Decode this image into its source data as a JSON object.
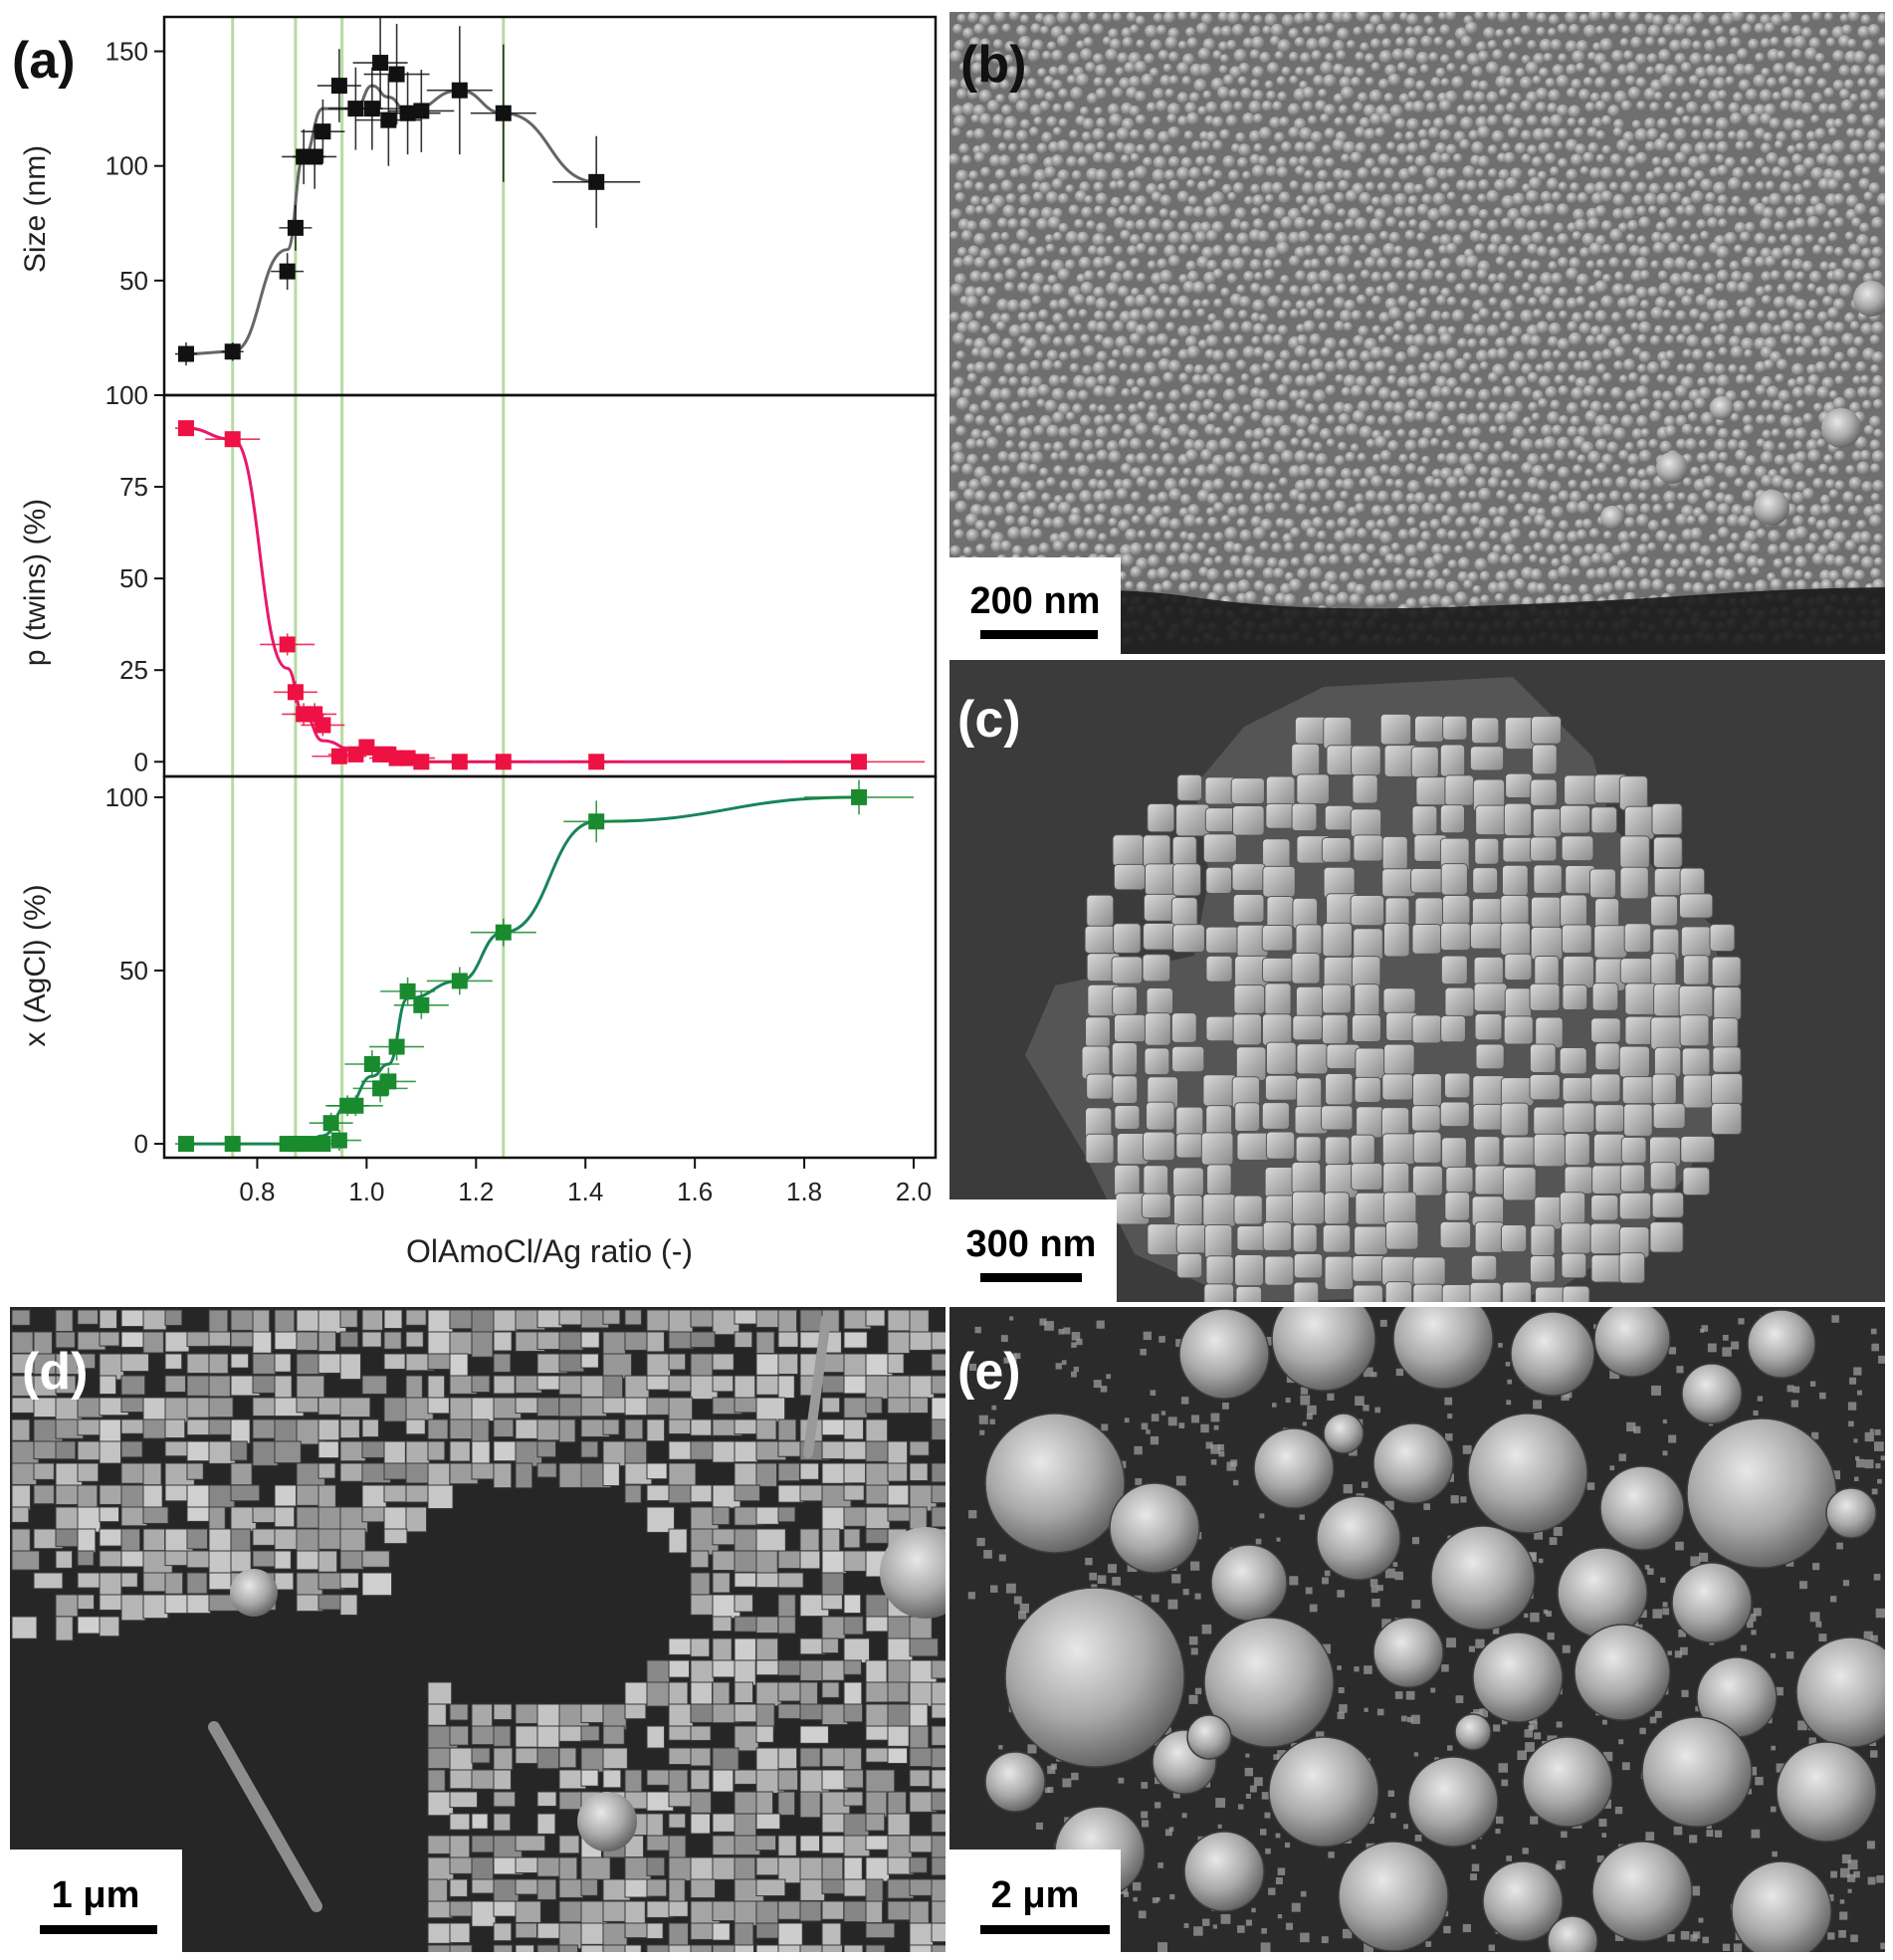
{
  "chart_data": [
    {
      "type": "scatter",
      "panel_label": "(a)",
      "ylabel": "Size (nm)",
      "xlabel": "",
      "ylim": [
        0,
        165
      ],
      "yticks": [
        {
          "value": 50,
          "label": "50"
        },
        {
          "value": 100,
          "label": "100"
        },
        {
          "value": 150,
          "label": "150"
        }
      ],
      "color": "#111111",
      "fit_color": "#666666",
      "series": [
        {
          "points": [
            {
              "x": 0.67,
              "y": 18,
              "xerr": 0.02,
              "yerr": 5
            },
            {
              "x": 0.755,
              "y": 19,
              "xerr": 0.02,
              "yerr": 4
            },
            {
              "x": 0.855,
              "y": 54,
              "xerr": 0.03,
              "yerr": 8
            },
            {
              "x": 0.87,
              "y": 73,
              "xerr": 0.03,
              "yerr": 10
            },
            {
              "x": 0.885,
              "y": 104,
              "xerr": 0.04,
              "yerr": 12
            },
            {
              "x": 0.905,
              "y": 104,
              "xerr": 0.04,
              "yerr": 14
            },
            {
              "x": 0.92,
              "y": 115,
              "xerr": 0.04,
              "yerr": 14
            },
            {
              "x": 0.95,
              "y": 135,
              "xerr": 0.04,
              "yerr": 16
            },
            {
              "x": 0.98,
              "y": 125,
              "xerr": 0.05,
              "yerr": 18
            },
            {
              "x": 1.01,
              "y": 125,
              "xerr": 0.05,
              "yerr": 18
            },
            {
              "x": 1.025,
              "y": 145,
              "xerr": 0.05,
              "yerr": 20
            },
            {
              "x": 1.04,
              "y": 120,
              "xerr": 0.06,
              "yerr": 20
            },
            {
              "x": 1.055,
              "y": 140,
              "xerr": 0.06,
              "yerr": 22
            },
            {
              "x": 1.075,
              "y": 123,
              "xerr": 0.06,
              "yerr": 18
            },
            {
              "x": 1.1,
              "y": 124,
              "xerr": 0.06,
              "yerr": 18
            },
            {
              "x": 1.17,
              "y": 133,
              "xerr": 0.06,
              "yerr": 28
            },
            {
              "x": 1.25,
              "y": 123,
              "xerr": 0.06,
              "yerr": 30
            },
            {
              "x": 1.42,
              "y": 93,
              "xerr": 0.08,
              "yerr": 20
            }
          ]
        }
      ]
    },
    {
      "type": "scatter",
      "ylabel": "p (twins) (%)",
      "xlabel": "",
      "ylim": [
        -4,
        100
      ],
      "yticks": [
        {
          "value": 0,
          "label": "0"
        },
        {
          "value": 25,
          "label": "25"
        },
        {
          "value": 50,
          "label": "50"
        },
        {
          "value": 75,
          "label": "75"
        },
        {
          "value": 100,
          "label": "100"
        }
      ],
      "color": "#ee1144",
      "fit_color": "#e8196c",
      "series": [
        {
          "points": [
            {
              "x": 0.67,
              "y": 91,
              "xerr": 0.02,
              "yerr": 2
            },
            {
              "x": 0.755,
              "y": 88,
              "xerr": 0.05,
              "yerr": 2
            },
            {
              "x": 0.855,
              "y": 32,
              "xerr": 0.05,
              "yerr": 3
            },
            {
              "x": 0.87,
              "y": 19,
              "xerr": 0.04,
              "yerr": 3
            },
            {
              "x": 0.885,
              "y": 13,
              "xerr": 0.04,
              "yerr": 3
            },
            {
              "x": 0.905,
              "y": 13,
              "xerr": 0.04,
              "yerr": 3
            },
            {
              "x": 0.92,
              "y": 10,
              "xerr": 0.04,
              "yerr": 3
            },
            {
              "x": 0.95,
              "y": 1.5,
              "xerr": 0.05,
              "yerr": 2
            },
            {
              "x": 0.98,
              "y": 2,
              "xerr": 0.05,
              "yerr": 2
            },
            {
              "x": 1.0,
              "y": 4,
              "xerr": 0.05,
              "yerr": 2
            },
            {
              "x": 1.025,
              "y": 2,
              "xerr": 0.05,
              "yerr": 2
            },
            {
              "x": 1.04,
              "y": 2,
              "xerr": 0.05,
              "yerr": 2
            },
            {
              "x": 1.055,
              "y": 1,
              "xerr": 0.05,
              "yerr": 2
            },
            {
              "x": 1.075,
              "y": 1,
              "xerr": 0.05,
              "yerr": 2
            },
            {
              "x": 1.1,
              "y": 0,
              "xerr": 0.05,
              "yerr": 2
            },
            {
              "x": 1.17,
              "y": 0,
              "xerr": 0.05,
              "yerr": 2
            },
            {
              "x": 1.25,
              "y": 0,
              "xerr": 0.05,
              "yerr": 2
            },
            {
              "x": 1.42,
              "y": 0,
              "xerr": 0.05,
              "yerr": 2
            },
            {
              "x": 1.9,
              "y": 0,
              "xerr": 0.12,
              "yerr": 2
            }
          ]
        }
      ]
    },
    {
      "type": "scatter",
      "ylabel": "x (AgCl) (%)",
      "xlabel": "OlAmoCl/Ag ratio (-)",
      "ylim": [
        -4,
        106
      ],
      "yticks": [
        {
          "value": 0,
          "label": "0"
        },
        {
          "value": 50,
          "label": "50"
        },
        {
          "value": 100,
          "label": "100"
        }
      ],
      "xlim": [
        0.63,
        2.04
      ],
      "xticks": [
        {
          "value": 0.8,
          "label": "0.8"
        },
        {
          "value": 1.0,
          "label": "1.0"
        },
        {
          "value": 1.2,
          "label": "1.2"
        },
        {
          "value": 1.4,
          "label": "1.4"
        },
        {
          "value": 1.6,
          "label": "1.6"
        },
        {
          "value": 1.8,
          "label": "1.8"
        },
        {
          "value": 2.0,
          "label": "2.0"
        }
      ],
      "color": "#1a8a2e",
      "fit_color": "#18845a",
      "series": [
        {
          "points": [
            {
              "x": 0.67,
              "y": 0,
              "xerr": 0.02,
              "yerr": 1
            },
            {
              "x": 0.755,
              "y": 0,
              "xerr": 0.03,
              "yerr": 1
            },
            {
              "x": 0.855,
              "y": 0,
              "xerr": 0.03,
              "yerr": 1
            },
            {
              "x": 0.87,
              "y": 0,
              "xerr": 0.03,
              "yerr": 1
            },
            {
              "x": 0.885,
              "y": 0,
              "xerr": 0.03,
              "yerr": 1
            },
            {
              "x": 0.905,
              "y": 0,
              "xerr": 0.03,
              "yerr": 1
            },
            {
              "x": 0.92,
              "y": 0,
              "xerr": 0.03,
              "yerr": 1
            },
            {
              "x": 0.935,
              "y": 6,
              "xerr": 0.04,
              "yerr": 3
            },
            {
              "x": 0.95,
              "y": 1,
              "xerr": 0.04,
              "yerr": 3
            },
            {
              "x": 0.965,
              "y": 11,
              "xerr": 0.04,
              "yerr": 3
            },
            {
              "x": 0.98,
              "y": 11,
              "xerr": 0.05,
              "yerr": 3
            },
            {
              "x": 1.01,
              "y": 23,
              "xerr": 0.05,
              "yerr": 4
            },
            {
              "x": 1.025,
              "y": 16,
              "xerr": 0.05,
              "yerr": 4
            },
            {
              "x": 1.04,
              "y": 18,
              "xerr": 0.05,
              "yerr": 4
            },
            {
              "x": 1.055,
              "y": 28,
              "xerr": 0.05,
              "yerr": 4
            },
            {
              "x": 1.075,
              "y": 44,
              "xerr": 0.05,
              "yerr": 4
            },
            {
              "x": 1.1,
              "y": 40,
              "xerr": 0.05,
              "yerr": 4
            },
            {
              "x": 1.17,
              "y": 47,
              "xerr": 0.06,
              "yerr": 4
            },
            {
              "x": 1.25,
              "y": 61,
              "xerr": 0.06,
              "yerr": 4
            },
            {
              "x": 1.42,
              "y": 93,
              "xerr": 0.06,
              "yerr": 6
            },
            {
              "x": 1.9,
              "y": 100,
              "xerr": 0.1,
              "yerr": 5
            }
          ]
        }
      ]
    }
  ],
  "shared_x": {
    "xlim": [
      0.63,
      2.04
    ],
    "vertical_lines": [
      0.755,
      0.87,
      0.955,
      1.25
    ],
    "vertical_line_color": "#b6dba0"
  },
  "panels": {
    "b": {
      "label": "(b)",
      "scale_bar": "200 nm"
    },
    "c": {
      "label": "(c)",
      "scale_bar": "300 nm"
    },
    "d": {
      "label": "(d)",
      "scale_bar": "1 μm"
    },
    "e": {
      "label": "(e)",
      "scale_bar": "2 μm"
    }
  },
  "colors": {
    "sem_background_dark": "#2a2a2a",
    "sem_particle": "#bdbdbd",
    "panel_label": "#111111"
  }
}
